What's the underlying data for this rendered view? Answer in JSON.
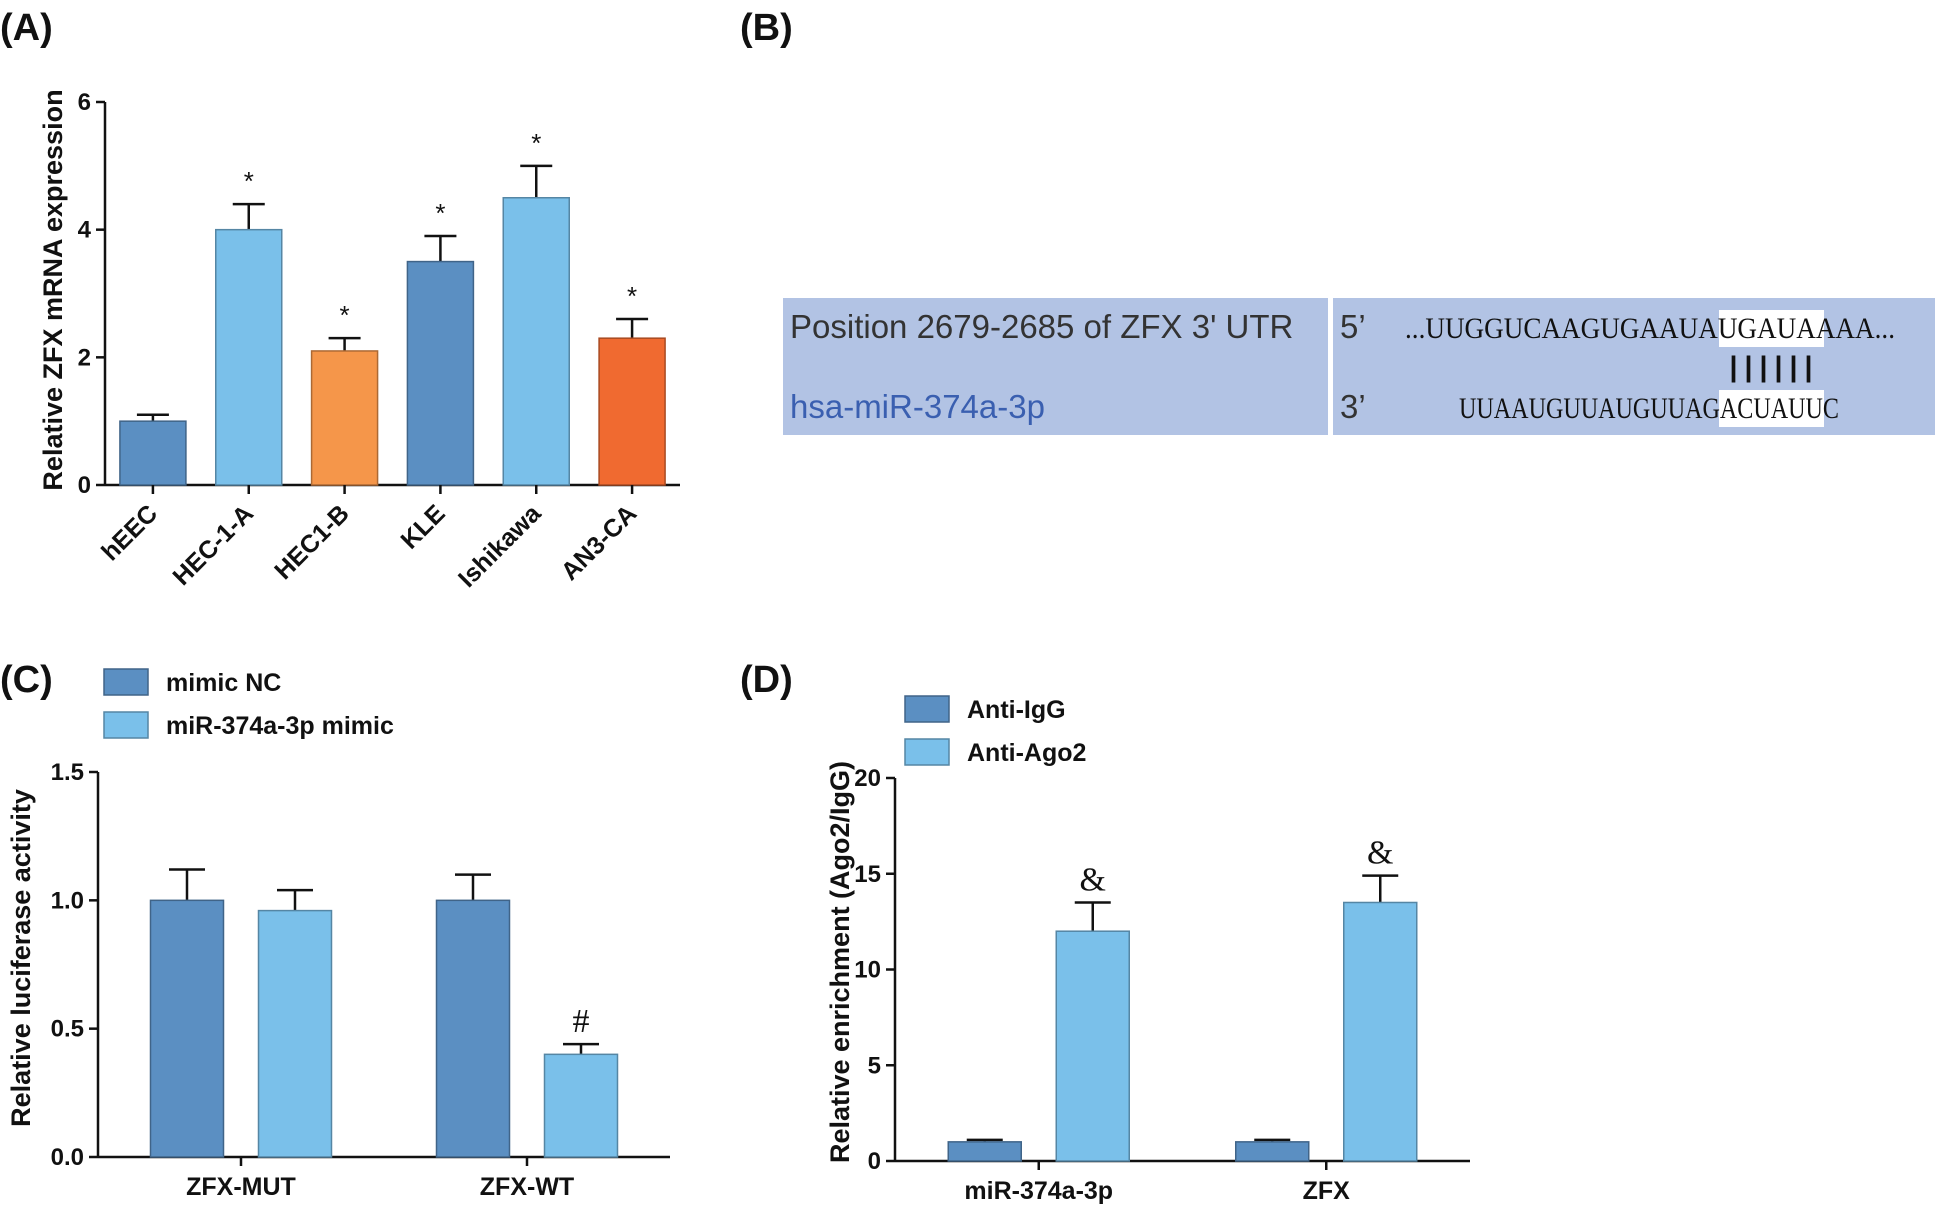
{
  "panels": {
    "A": {
      "label": "(A)",
      "chart_data": {
        "type": "bar",
        "categories": [
          "hEEC",
          "HEC-1-A",
          "HEC1-B",
          "KLE",
          "Ishikawa",
          "AN3-CA"
        ],
        "values": [
          1.0,
          4.0,
          2.1,
          3.5,
          4.5,
          2.3
        ],
        "errors": [
          0.1,
          0.4,
          0.2,
          0.4,
          0.5,
          0.3
        ],
        "significance": [
          "",
          "*",
          "*",
          "*",
          "*",
          "*"
        ],
        "colors": [
          "#5b8fc2",
          "#7ac0ea",
          "#f5964a",
          "#5b8fc2",
          "#7ac0ea",
          "#f06a30"
        ],
        "xlabel": "",
        "ylabel": "Relative ZFX mRNA expression",
        "ylim": [
          0,
          6
        ],
        "yticks": [
          0,
          2,
          4,
          6
        ],
        "ytick_labels": [
          "0",
          "2",
          "4",
          "6"
        ]
      }
    },
    "B": {
      "label": "(B)",
      "left_top": "Position 2679-2685 of ZFX 3' UTR",
      "left_bottom": "hsa-miR-374a-3p",
      "top_prime": "5’",
      "bottom_prime": "3’",
      "top_seq_pre": "...UUGGUCAAGUGAAUA",
      "top_seq_match": "UGAUAA",
      "top_seq_post": "AA...",
      "pairs": "||||||",
      "bottom_seq_pre": "UUAAUGUUAUGUUAG",
      "bottom_seq_match": "ACUAUU",
      "bottom_seq_post": "C",
      "bg_color": "#b2c3e4",
      "mir_color": "#3a5fb0"
    },
    "C": {
      "label": "(C)",
      "chart_data": {
        "type": "bar",
        "categories": [
          "ZFX-MUT",
          "ZFX-WT"
        ],
        "series": [
          {
            "name": "mimic NC",
            "values": [
              1.0,
              1.0
            ],
            "errors": [
              0.12,
              0.1
            ],
            "color": "#5b8fc2",
            "significance": [
              "",
              ""
            ]
          },
          {
            "name": "miR-374a-3p mimic",
            "values": [
              0.96,
              0.4
            ],
            "errors": [
              0.08,
              0.04
            ],
            "color": "#7ac0ea",
            "significance": [
              "",
              "#"
            ]
          }
        ],
        "xlabel": "",
        "ylabel": "Relative luciferase activity",
        "ylim": [
          0,
          1.5
        ],
        "yticks": [
          0,
          0.5,
          1.0,
          1.5
        ],
        "ytick_labels": [
          "0.0",
          "0.5",
          "1.0",
          "1.5"
        ],
        "legend_position": "top-left"
      }
    },
    "D": {
      "label": "(D)",
      "chart_data": {
        "type": "bar",
        "categories": [
          "miR-374a-3p",
          "ZFX"
        ],
        "series": [
          {
            "name": "Anti-IgG",
            "values": [
              1.0,
              1.0
            ],
            "errors": [
              0.1,
              0.1
            ],
            "color": "#5b8fc2",
            "significance": [
              "",
              ""
            ]
          },
          {
            "name": "Anti-Ago2",
            "values": [
              12.0,
              13.5
            ],
            "errors": [
              1.5,
              1.4
            ],
            "color": "#7ac0ea",
            "significance": [
              "&",
              "&"
            ]
          }
        ],
        "xlabel": "",
        "ylabel": "Relative enrichment (Ago2/IgG)",
        "ylim": [
          0,
          20
        ],
        "yticks": [
          0,
          5,
          10,
          15,
          20
        ],
        "ytick_labels": [
          "0",
          "5",
          "10",
          "15",
          "20"
        ],
        "legend_position": "top-left"
      }
    }
  }
}
